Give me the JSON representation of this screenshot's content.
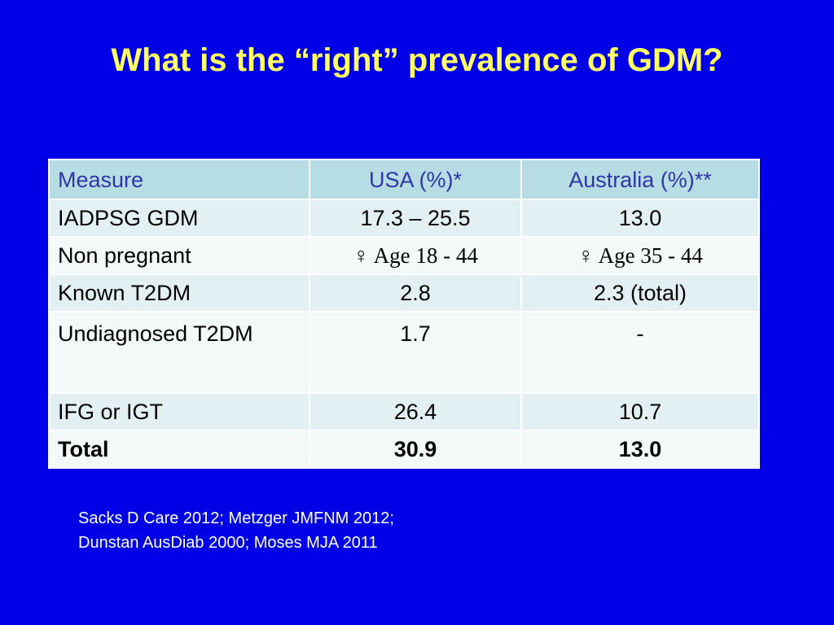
{
  "slide": {
    "title": "What is the “right” prevalence of GDM?"
  },
  "table": {
    "headers": [
      "Measure",
      "USA (%)*",
      "Australia (%)**"
    ],
    "rows": [
      {
        "measure": "IADPSG GDM",
        "usa": "17.3 – 25.5",
        "australia": "13.0"
      },
      {
        "measure": "Non pregnant",
        "usa": "♀ Age 18 - 44",
        "australia": "♀ Age 35 - 44"
      },
      {
        "measure": "Known T2DM",
        "usa": "2.8",
        "australia": "2.3 (total)"
      },
      {
        "measure": "Undiagnosed T2DM",
        "usa": "1.7",
        "australia": "-"
      },
      {
        "measure": "IFG or IGT",
        "usa": "26.4",
        "australia": "10.7"
      },
      {
        "measure": "Total",
        "usa": "30.9",
        "australia": "13.0"
      }
    ]
  },
  "references": {
    "line1": "Sacks D Care 2012; Metzger JMFNM 2012;",
    "line2": "Dunstan AusDiab 2000; Moses MJA 2011"
  },
  "colors": {
    "background": "#0000e6",
    "title": "#ffff66",
    "header_bg": "#b7dde4",
    "header_text": "#2e36a8",
    "row_dark": "#e3f0f3",
    "row_light": "#f3f8f9"
  }
}
